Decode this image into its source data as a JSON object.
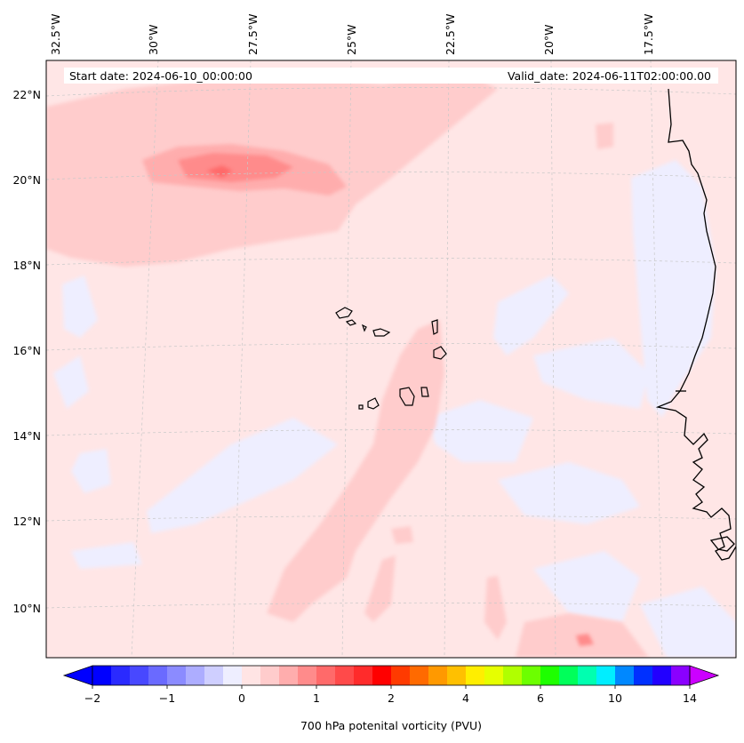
{
  "map": {
    "start_date_text": "Start date: 2024-06-10_00:00:00",
    "valid_date_text": "Valid_date: 2024-06-11T02:00:00.00",
    "lon_labels": [
      "32.5°W",
      "30°W",
      "27.5°W",
      "25°W",
      "22.5°W",
      "20°W",
      "17.5°W"
    ],
    "lat_labels": [
      "22°N",
      "20°N",
      "18°N",
      "16°N",
      "14°N",
      "12°N",
      "10°N"
    ],
    "background_color": "#ffe6e6",
    "coastline_color": "#000000",
    "gridline_color": "#c8c8c8"
  },
  "colorbar": {
    "label": "700 hPa potenital vorticity (PVU)",
    "tick_labels": [
      "−2",
      "−1",
      "0",
      "1",
      "2",
      "4",
      "6",
      "10",
      "14"
    ],
    "under_color": "#0000ff",
    "over_color": "#cc00ff",
    "colors": [
      "#0000ff",
      "#2a2aff",
      "#4848ff",
      "#6a6aff",
      "#8b8bff",
      "#adadff",
      "#cfcfff",
      "#eeeeff",
      "#ffe4e4",
      "#ffcccc",
      "#ffadad",
      "#ff8b8b",
      "#ff6a6a",
      "#ff4a4a",
      "#ff2b2b",
      "#ff0000",
      "#ff3a00",
      "#ff6a00",
      "#ff9900",
      "#ffc000",
      "#ffee00",
      "#e6ff00",
      "#b0ff00",
      "#6cff00",
      "#1eff00",
      "#00ff5a",
      "#00ffb0",
      "#00eeff",
      "#0088ff",
      "#0030ff",
      "#2200ff",
      "#8a00ff"
    ]
  }
}
